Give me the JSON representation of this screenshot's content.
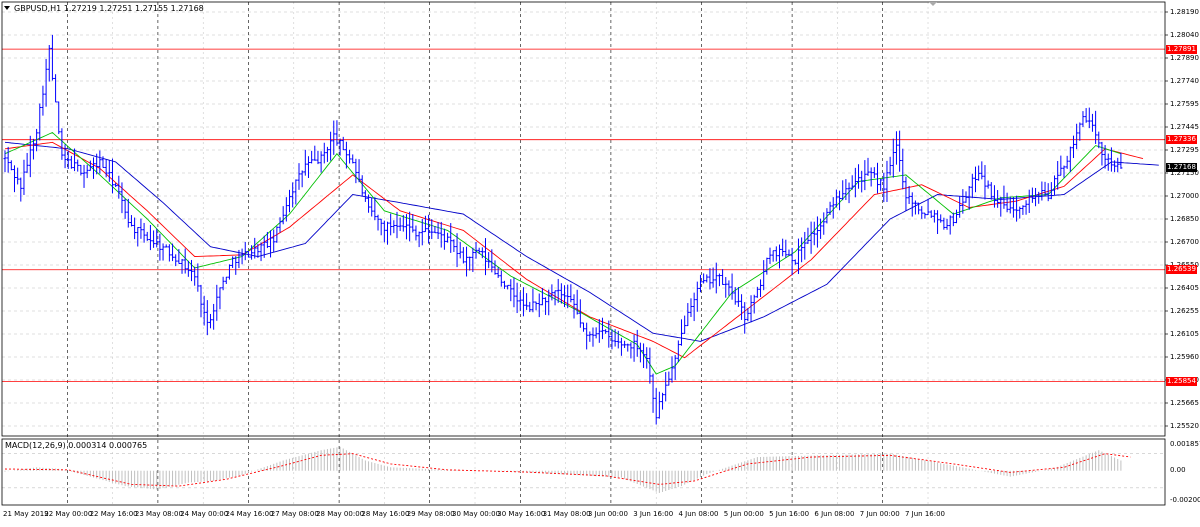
{
  "header": {
    "chart_title": "GBPUSD,H1  1.27219 1.27251 1.27155 1.27168",
    "macd_label": "MACD(12,26,9) 0.000314 0.000765"
  },
  "icons": {
    "collapse": "triangle-down-icon",
    "scroll": "chart-shift-icon"
  },
  "colors": {
    "price": "#0000ff",
    "ma_fast": "#00c000",
    "ma_mid": "#ff0000",
    "ma_slow": "#0000c8",
    "level": "#ff0000",
    "grid": "#c0c0c0",
    "macd_hist": "#c0c0c0",
    "macd_signal": "#ff0000"
  },
  "chart_data": [
    {
      "type": "line",
      "symbol": "GBPUSD",
      "timeframe": "H1",
      "ylim": [
        1.2552,
        1.2818
      ],
      "yticks": [
        "1.28190",
        "1.28040",
        "1.27890",
        "1.27740",
        "1.27595",
        "1.27445",
        "1.27295",
        "1.27150",
        "1.27000",
        "1.26850",
        "1.26700",
        "1.26550",
        "1.26405",
        "1.26255",
        "1.26105",
        "1.25960",
        "1.25810",
        "1.25665",
        "1.25520"
      ],
      "xticks": [
        "21 May 2019",
        "22 May 00:00",
        "22 May 16:00",
        "23 May 08:00",
        "24 May 00:00",
        "24 May 16:00",
        "27 May 08:00",
        "28 May 00:00",
        "28 May 16:00",
        "29 May 08:00",
        "30 May 00:00",
        "30 May 16:00",
        "31 May 08:00",
        "3 Jun 00:00",
        "3 Jun 16:00",
        "4 Jun 08:00",
        "5 Jun 00:00",
        "5 Jun 16:00",
        "6 Jun 08:00",
        "7 Jun 00:00",
        "7 Jun 16:00"
      ],
      "levels": [
        {
          "label": "1.27891",
          "value": 1.27891
        },
        {
          "label": "1.27336",
          "value": 1.27336
        },
        {
          "label": "1.26539",
          "value": 1.26539
        },
        {
          "label": "1.25854",
          "value": 1.25854
        }
      ],
      "current_price": {
        "label": "1.27168",
        "value": 1.27168
      },
      "price_keypoints": [
        [
          0,
          1.2722
        ],
        [
          5,
          1.2705
        ],
        [
          10,
          1.274
        ],
        [
          14,
          1.2788
        ],
        [
          18,
          1.2722
        ],
        [
          25,
          1.2714
        ],
        [
          30,
          1.272
        ],
        [
          35,
          1.2705
        ],
        [
          40,
          1.268
        ],
        [
          48,
          1.267
        ],
        [
          55,
          1.266
        ],
        [
          60,
          1.265
        ],
        [
          64,
          1.262
        ],
        [
          68,
          1.2642
        ],
        [
          72,
          1.266
        ],
        [
          78,
          1.2665
        ],
        [
          85,
          1.2672
        ],
        [
          90,
          1.27
        ],
        [
          95,
          1.2718
        ],
        [
          100,
          1.2722
        ],
        [
          104,
          1.2736
        ],
        [
          110,
          1.272
        ],
        [
          115,
          1.269
        ],
        [
          120,
          1.268
        ],
        [
          125,
          1.2683
        ],
        [
          130,
          1.2677
        ],
        [
          135,
          1.2678
        ],
        [
          140,
          1.2672
        ],
        [
          145,
          1.266
        ],
        [
          150,
          1.2665
        ],
        [
          155,
          1.2653
        ],
        [
          160,
          1.264
        ],
        [
          165,
          1.263
        ],
        [
          170,
          1.2635
        ],
        [
          175,
          1.264
        ],
        [
          180,
          1.2632
        ],
        [
          184,
          1.2612
        ],
        [
          188,
          1.2618
        ],
        [
          192,
          1.261
        ],
        [
          196,
          1.2608
        ],
        [
          200,
          1.2608
        ],
        [
          203,
          1.26
        ],
        [
          206,
          1.2565
        ],
        [
          208,
          1.2578
        ],
        [
          212,
          1.2598
        ],
        [
          216,
          1.263
        ],
        [
          220,
          1.2645
        ],
        [
          225,
          1.265
        ],
        [
          230,
          1.264
        ],
        [
          234,
          1.2625
        ],
        [
          238,
          1.264
        ],
        [
          242,
          1.2665
        ],
        [
          247,
          1.2665
        ],
        [
          250,
          1.266
        ],
        [
          253,
          1.2672
        ],
        [
          258,
          1.268
        ],
        [
          262,
          1.2695
        ],
        [
          266,
          1.2705
        ],
        [
          270,
          1.271
        ],
        [
          274,
          1.2712
        ],
        [
          278,
          1.2705
        ],
        [
          282,
          1.273
        ],
        [
          285,
          1.27
        ],
        [
          290,
          1.269
        ],
        [
          294,
          1.2688
        ],
        [
          297,
          1.2682
        ],
        [
          300,
          1.2685
        ],
        [
          304,
          1.27
        ],
        [
          308,
          1.2715
        ],
        [
          312,
          1.27
        ],
        [
          315,
          1.2695
        ],
        [
          318,
          1.269
        ],
        [
          322,
          1.2695
        ],
        [
          326,
          1.27
        ],
        [
          330,
          1.27
        ],
        [
          334,
          1.2715
        ],
        [
          338,
          1.273
        ],
        [
          341,
          1.275
        ],
        [
          344,
          1.274
        ],
        [
          347,
          1.2725
        ],
        [
          350,
          1.272
        ],
        [
          353,
          1.2716
        ]
      ],
      "ma_fast_keypoints": [
        [
          0,
          1.2725
        ],
        [
          15,
          1.2738
        ],
        [
          30,
          1.2712
        ],
        [
          45,
          1.2685
        ],
        [
          60,
          1.2655
        ],
        [
          75,
          1.2662
        ],
        [
          90,
          1.2688
        ],
        [
          105,
          1.2725
        ],
        [
          120,
          1.269
        ],
        [
          140,
          1.2678
        ],
        [
          160,
          1.265
        ],
        [
          180,
          1.263
        ],
        [
          200,
          1.2608
        ],
        [
          206,
          1.259
        ],
        [
          212,
          1.2595
        ],
        [
          230,
          1.264
        ],
        [
          250,
          1.2665
        ],
        [
          270,
          1.2708
        ],
        [
          285,
          1.2712
        ],
        [
          300,
          1.2688
        ],
        [
          315,
          1.2698
        ],
        [
          330,
          1.27
        ],
        [
          345,
          1.273
        ],
        [
          353,
          1.2725
        ]
      ],
      "ma_mid_keypoints": [
        [
          0,
          1.2728
        ],
        [
          15,
          1.2732
        ],
        [
          30,
          1.2716
        ],
        [
          45,
          1.269
        ],
        [
          60,
          1.2662
        ],
        [
          75,
          1.2663
        ],
        [
          90,
          1.268
        ],
        [
          110,
          1.2712
        ],
        [
          125,
          1.269
        ],
        [
          145,
          1.2678
        ],
        [
          165,
          1.2648
        ],
        [
          185,
          1.2625
        ],
        [
          205,
          1.261
        ],
        [
          215,
          1.26
        ],
        [
          235,
          1.263
        ],
        [
          255,
          1.266
        ],
        [
          275,
          1.27
        ],
        [
          290,
          1.2706
        ],
        [
          305,
          1.2692
        ],
        [
          320,
          1.2696
        ],
        [
          335,
          1.2705
        ],
        [
          348,
          1.2728
        ],
        [
          360,
          1.2722
        ]
      ],
      "ma_slow_keypoints": [
        [
          0,
          1.2732
        ],
        [
          20,
          1.2728
        ],
        [
          35,
          1.272
        ],
        [
          50,
          1.2695
        ],
        [
          65,
          1.2668
        ],
        [
          80,
          1.2662
        ],
        [
          95,
          1.267
        ],
        [
          110,
          1.27
        ],
        [
          125,
          1.2695
        ],
        [
          145,
          1.2688
        ],
        [
          165,
          1.2662
        ],
        [
          185,
          1.264
        ],
        [
          205,
          1.2615
        ],
        [
          220,
          1.261
        ],
        [
          240,
          1.2625
        ],
        [
          260,
          1.2645
        ],
        [
          280,
          1.2685
        ],
        [
          295,
          1.27
        ],
        [
          315,
          1.2697
        ],
        [
          335,
          1.27
        ],
        [
          350,
          1.272
        ],
        [
          365,
          1.2718
        ]
      ]
    },
    {
      "type": "bar",
      "name": "MACD(12,26,9)",
      "ylim": [
        -0.002007,
        0.001857
      ],
      "yticks": [
        "0.001857",
        "0.00",
        "-0.002007"
      ],
      "macd_keypoints": [
        [
          0,
          -5e-05
        ],
        [
          10,
          0.0002
        ],
        [
          18,
          0.0001
        ],
        [
          28,
          -0.0004
        ],
        [
          38,
          -0.0009
        ],
        [
          48,
          -0.0011
        ],
        [
          58,
          -0.0007
        ],
        [
          66,
          -0.0006
        ],
        [
          75,
          -0.00025
        ],
        [
          88,
          0.0006
        ],
        [
          100,
          0.0012
        ],
        [
          106,
          0.0014
        ],
        [
          114,
          0.0006
        ],
        [
          122,
          0.0002
        ],
        [
          140,
          5e-05
        ],
        [
          160,
          -5e-05
        ],
        [
          180,
          -0.00025
        ],
        [
          195,
          -0.0004
        ],
        [
          207,
          -0.0013
        ],
        [
          214,
          -0.0009
        ],
        [
          222,
          -0.0002
        ],
        [
          238,
          0.0008
        ],
        [
          258,
          0.0009
        ],
        [
          280,
          0.001
        ],
        [
          300,
          0.0003
        ],
        [
          318,
          -0.00035
        ],
        [
          332,
          0.00015
        ],
        [
          346,
          0.0012
        ],
        [
          353,
          0.0006
        ]
      ],
      "signal_keypoints": [
        [
          0,
          0.0001
        ],
        [
          20,
          5e-05
        ],
        [
          40,
          -0.0008
        ],
        [
          55,
          -0.0009
        ],
        [
          70,
          -0.0005
        ],
        [
          88,
          0.0003
        ],
        [
          100,
          0.0009
        ],
        [
          110,
          0.001
        ],
        [
          122,
          0.0004
        ],
        [
          140,
          5e-05
        ],
        [
          165,
          -8e-05
        ],
        [
          190,
          -0.0003
        ],
        [
          207,
          -0.0008
        ],
        [
          218,
          -0.0006
        ],
        [
          235,
          0.0004
        ],
        [
          255,
          0.0008
        ],
        [
          280,
          0.0009
        ],
        [
          300,
          0.0004
        ],
        [
          318,
          -0.0001
        ],
        [
          335,
          0.0002
        ],
        [
          348,
          0.001
        ],
        [
          356,
          0.0008
        ]
      ]
    }
  ]
}
